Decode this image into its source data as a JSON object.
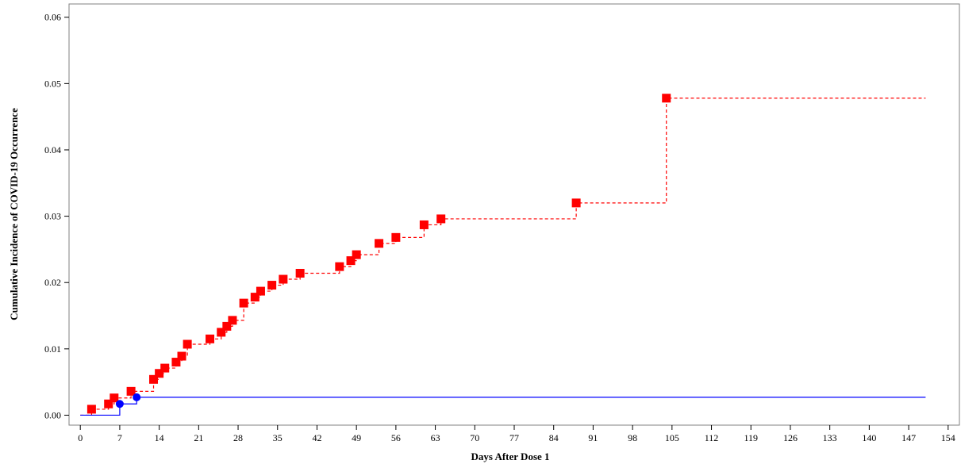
{
  "chart_data": {
    "type": "line",
    "title": "",
    "xlabel": "Days After Dose 1",
    "ylabel": "Cumulative Incidence of COVID-19 Occurrence",
    "xlim": [
      -2,
      156
    ],
    "ylim": [
      -0.0015,
      0.062
    ],
    "x_ticks": [
      0,
      7,
      14,
      21,
      28,
      35,
      42,
      49,
      56,
      63,
      70,
      77,
      84,
      91,
      98,
      105,
      112,
      119,
      126,
      133,
      140,
      147,
      154
    ],
    "y_ticks": [
      0.0,
      0.01,
      0.02,
      0.03,
      0.04,
      0.05,
      0.06
    ],
    "y_tick_labels": [
      "0.00",
      "0.01",
      "0.02",
      "0.03",
      "0.04",
      "0.05",
      "0.06"
    ],
    "grid": false,
    "legend": "none",
    "series": [
      {
        "color": "#ff0000",
        "line_style": "dashed",
        "marker": "square",
        "x": [
          0,
          2,
          5,
          6,
          9,
          13,
          14,
          15,
          17,
          18,
          19,
          23,
          25,
          26,
          27,
          29,
          31,
          32,
          34,
          36,
          39,
          46,
          48,
          49,
          53,
          56,
          61,
          64,
          88,
          104,
          150
        ],
        "y": [
          0.0,
          0.0009,
          0.0017,
          0.0026,
          0.0036,
          0.0054,
          0.0063,
          0.0071,
          0.008,
          0.0089,
          0.0107,
          0.0115,
          0.0125,
          0.0134,
          0.0143,
          0.0169,
          0.0178,
          0.0187,
          0.0196,
          0.0205,
          0.0214,
          0.0224,
          0.0233,
          0.0242,
          0.0259,
          0.0268,
          0.0287,
          0.0296,
          0.032,
          0.0478,
          0.0478
        ],
        "marker_x": [
          2,
          5,
          6,
          9,
          13,
          14,
          15,
          17,
          18,
          19,
          23,
          25,
          26,
          27,
          29,
          31,
          32,
          34,
          36,
          39,
          46,
          48,
          49,
          53,
          56,
          61,
          64,
          88,
          104
        ]
      },
      {
        "color": "#0000ff",
        "line_style": "solid",
        "marker": "circle",
        "x": [
          0,
          7,
          10,
          150
        ],
        "y": [
          0.0,
          0.0017,
          0.0027,
          0.0027
        ],
        "marker_x": [
          7,
          10
        ]
      }
    ]
  }
}
